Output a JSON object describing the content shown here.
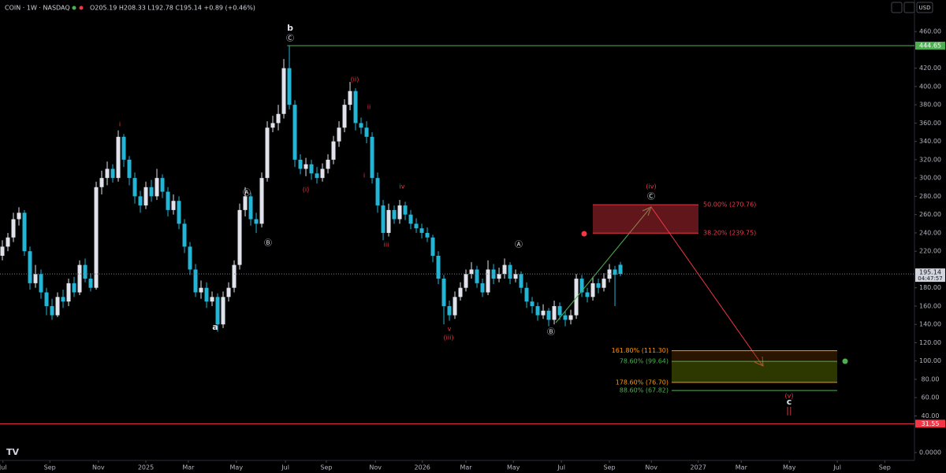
{
  "chart_data": {
    "type": "candlestick",
    "title": "COIN · 1W · NASDAQ",
    "ohlc_legend": "O205.19 H208.33 L192.78 C195.14 +0.89 (+0.46%)",
    "currency": "USD",
    "up_color": "#e0e3eb",
    "down_color": "#22b5d6",
    "open": [
      215,
      225,
      235,
      255,
      262,
      220,
      185,
      195,
      175,
      160,
      150,
      170,
      165,
      185,
      175,
      205,
      190,
      180,
      290,
      300,
      310,
      300,
      345,
      320,
      300,
      280,
      270,
      290,
      280,
      300,
      285,
      265,
      275,
      250,
      225,
      200,
      175,
      180,
      165,
      170,
      140,
      170,
      180,
      205,
      265,
      280,
      255,
      250,
      300,
      355,
      360,
      370,
      420,
      380,
      320,
      310,
      315,
      305,
      300,
      310,
      320,
      340,
      355,
      380,
      395,
      360,
      355,
      345,
      300,
      270,
      240,
      265,
      255,
      270,
      260,
      250,
      245,
      240,
      235,
      215,
      190,
      160,
      150,
      170,
      180,
      195,
      200,
      185,
      175,
      200,
      190,
      195,
      205,
      190,
      195,
      180,
      165,
      160,
      150,
      155,
      145,
      160,
      150,
      145,
      150,
      190,
      175,
      170,
      185,
      180,
      190,
      200,
      205.19
    ],
    "high": [
      232,
      240,
      262,
      268,
      265,
      225,
      205,
      200,
      180,
      168,
      175,
      178,
      190,
      192,
      210,
      212,
      196,
      296,
      308,
      318,
      315,
      352,
      348,
      324,
      306,
      286,
      296,
      298,
      310,
      304,
      290,
      282,
      280,
      255,
      230,
      206,
      188,
      186,
      176,
      174,
      176,
      186,
      210,
      272,
      290,
      284,
      262,
      306,
      362,
      368,
      380,
      430,
      444.65,
      385,
      326,
      322,
      320,
      312,
      316,
      326,
      346,
      362,
      386,
      405,
      398,
      366,
      362,
      350,
      306,
      276,
      272,
      270,
      276,
      274,
      265,
      256,
      250,
      246,
      238,
      220,
      194,
      166,
      176,
      186,
      200,
      208,
      204,
      190,
      210,
      206,
      202,
      212,
      208,
      200,
      198,
      186,
      170,
      164,
      162,
      158,
      166,
      164,
      154,
      156,
      195,
      194,
      180,
      192,
      190,
      196,
      206,
      204,
      208.33
    ],
    "low": [
      210,
      220,
      230,
      248,
      215,
      178,
      180,
      168,
      150,
      145,
      148,
      158,
      160,
      170,
      172,
      186,
      176,
      178,
      282,
      292,
      295,
      296,
      312,
      292,
      272,
      262,
      266,
      274,
      276,
      278,
      258,
      260,
      244,
      218,
      194,
      170,
      168,
      158,
      160,
      132,
      136,
      165,
      175,
      200,
      258,
      248,
      240,
      246,
      296,
      350,
      352,
      365,
      375,
      312,
      304,
      302,
      298,
      294,
      296,
      305,
      315,
      334,
      350,
      374,
      352,
      348,
      338,
      294,
      262,
      232,
      236,
      250,
      250,
      254,
      244,
      240,
      234,
      230,
      208,
      184,
      140,
      144,
      146,
      166,
      176,
      190,
      180,
      170,
      172,
      184,
      186,
      190,
      184,
      186,
      174,
      158,
      152,
      144,
      146,
      138,
      140,
      145,
      138,
      140,
      146,
      170,
      164,
      166,
      174,
      176,
      186,
      160,
      192.78
    ],
    "close": [
      225,
      235,
      255,
      262,
      220,
      185,
      195,
      175,
      160,
      150,
      170,
      165,
      185,
      175,
      205,
      190,
      180,
      290,
      300,
      310,
      300,
      345,
      320,
      300,
      280,
      270,
      290,
      280,
      300,
      285,
      265,
      275,
      250,
      225,
      200,
      175,
      180,
      165,
      170,
      140,
      170,
      180,
      205,
      265,
      280,
      255,
      250,
      300,
      355,
      360,
      370,
      420,
      380,
      320,
      310,
      315,
      305,
      300,
      310,
      320,
      340,
      355,
      380,
      395,
      360,
      355,
      345,
      300,
      270,
      240,
      265,
      255,
      270,
      260,
      250,
      245,
      240,
      235,
      215,
      190,
      160,
      150,
      170,
      180,
      195,
      200,
      185,
      175,
      200,
      190,
      195,
      205,
      190,
      195,
      180,
      165,
      160,
      150,
      155,
      145,
      160,
      150,
      145,
      150,
      190,
      175,
      170,
      185,
      180,
      190,
      200,
      194.25,
      195.14
    ],
    "ylim": [
      -8.6,
      494.5
    ],
    "yticks": [
      {
        "value": 0,
        "label": "0.0000"
      },
      {
        "value": 40,
        "label": "40.00"
      },
      {
        "value": 60,
        "label": "60.00"
      },
      {
        "value": 80,
        "label": "80.00"
      },
      {
        "value": 100,
        "label": "100.00"
      },
      {
        "value": 120,
        "label": "120.00"
      },
      {
        "value": 140,
        "label": "140.00"
      },
      {
        "value": 160,
        "label": "160.00"
      },
      {
        "value": 180,
        "label": "180.00"
      },
      {
        "value": 220,
        "label": "220.00"
      },
      {
        "value": 240,
        "label": "240.00"
      },
      {
        "value": 260,
        "label": "260.00"
      },
      {
        "value": 280,
        "label": "280.00"
      },
      {
        "value": 300,
        "label": "300.00"
      },
      {
        "value": 320,
        "label": "320.00"
      },
      {
        "value": 340,
        "label": "340.00"
      },
      {
        "value": 360,
        "label": "360.00"
      },
      {
        "value": 380,
        "label": "380.00"
      },
      {
        "value": 400,
        "label": "400.00"
      },
      {
        "value": 420,
        "label": "420.00"
      },
      {
        "value": 460,
        "label": "460.00"
      }
    ],
    "xlim": [
      -0.43,
      165.28
    ],
    "xticks": [
      {
        "value": 0.1,
        "label": "Jul"
      },
      {
        "value": 8.6,
        "label": "Sep"
      },
      {
        "value": 17.4,
        "label": "Nov"
      },
      {
        "value": 26,
        "label": "2025"
      },
      {
        "value": 33.7,
        "label": "Mar"
      },
      {
        "value": 42.4,
        "label": "May"
      },
      {
        "value": 51.3,
        "label": "Jul"
      },
      {
        "value": 58.7,
        "label": "Sep"
      },
      {
        "value": 67.6,
        "label": "Nov"
      },
      {
        "value": 76.1,
        "label": "2026"
      },
      {
        "value": 84,
        "label": "Mar"
      },
      {
        "value": 92.6,
        "label": "May"
      },
      {
        "value": 101.3,
        "label": "Jul"
      },
      {
        "value": 110,
        "label": "Sep"
      },
      {
        "value": 117.6,
        "label": "Nov"
      },
      {
        "value": 126.1,
        "label": "2027"
      },
      {
        "value": 133.9,
        "label": "Mar"
      },
      {
        "value": 142.6,
        "label": "May"
      },
      {
        "value": 151.3,
        "label": "Jul"
      },
      {
        "value": 159.9,
        "label": "Sep"
      }
    ],
    "price_lines": [
      {
        "value": 444.65,
        "color": "#4caf50"
      },
      {
        "value": 31.55,
        "color": "#f23645"
      }
    ],
    "last_price": 195.14,
    "countdown": "04:47:57",
    "fib_upper": {
      "color": "#f23645",
      "levels": [
        {
          "value": 270.76,
          "label": "50.00% (270.76)"
        },
        {
          "value": 239.75,
          "label": "38.20% (239.75)"
        }
      ]
    },
    "fib_lower": {
      "levels": [
        {
          "value": 111.3,
          "label": "161.80% (111.30)",
          "color": "#ff9800"
        },
        {
          "value": 99.64,
          "label": "78.60% (99.64)",
          "color": "#4caf50"
        },
        {
          "value": 76.7,
          "label": "178.60% (76.70)",
          "color": "#ff9800"
        },
        {
          "value": 67.82,
          "label": "88.60% (67.82)",
          "color": "#4caf50"
        }
      ]
    },
    "wave_labels": [
      "b",
      "Ⓒ",
      "i",
      "(ii)",
      "ii",
      "(i)",
      "i",
      "iv",
      "iii",
      "v",
      "(iii)",
      "(iv)",
      "Ⓒ",
      "a",
      "Ⓐ",
      "Ⓑ",
      "Ⓐ",
      "Ⓑ",
      "(v)",
      "c",
      "||"
    ]
  }
}
